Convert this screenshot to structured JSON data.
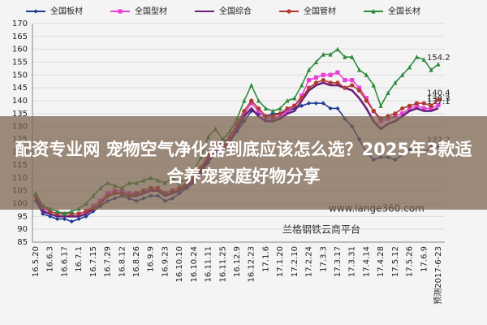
{
  "chart_data": {
    "type": "line",
    "categories": [
      "16.5.20",
      null,
      "16.6.3",
      null,
      "16.6.17",
      null,
      "16.7.1",
      null,
      "16.7.15",
      null,
      "16.7.29",
      null,
      "16.8.12",
      null,
      "16.8.26",
      null,
      "16.9.9",
      null,
      "16.9.23",
      null,
      "16.10.10",
      null,
      "16.10.24",
      null,
      "16.11.11",
      null,
      "16.11.25",
      null,
      "16.12.9",
      null,
      "16.12.23",
      null,
      "17.1.6",
      null,
      "17.1.20",
      null,
      "17.2.10",
      null,
      "17.2.24",
      null,
      "17.3.3",
      null,
      "17.3.17",
      null,
      "17.3.31",
      null,
      "17.4.14",
      null,
      "17.4.28",
      null,
      "17.5.12",
      null,
      "17.5.26",
      null,
      "17.6.9",
      null,
      "预测2017-6-23"
    ],
    "series": [
      {
        "name": "全国板材",
        "color": "#1f3a93",
        "marker": "diamond",
        "values": [
          101,
          96,
          95,
          94,
          94,
          93,
          94,
          95,
          97,
          99,
          101,
          102,
          103,
          102,
          101,
          102,
          103,
          103,
          101,
          102,
          104,
          106,
          108,
          112,
          116,
          120,
          125,
          124,
          128,
          132,
          136,
          135,
          134,
          135,
          135,
          136,
          137,
          138,
          139,
          139,
          139,
          137,
          137,
          133,
          130,
          125,
          120,
          117,
          118,
          118,
          117,
          119,
          121,
          120,
          120,
          122,
          122.2
        ]
      },
      {
        "name": "全国型材",
        "color": "#e83fd6",
        "marker": "square",
        "values": [
          103,
          98,
          97,
          96,
          96,
          96,
          96,
          97,
          99,
          101,
          104,
          105,
          105,
          104,
          104,
          105,
          106,
          106,
          104,
          105,
          106,
          108,
          110,
          114,
          118,
          121,
          122,
          125,
          130,
          135,
          139,
          136,
          133,
          133,
          134,
          136,
          138,
          142,
          148,
          149,
          150,
          150,
          151,
          148,
          148,
          145,
          141,
          136,
          132,
          133,
          134,
          135,
          137,
          138,
          137,
          137,
          138.3
        ]
      },
      {
        "name": "全国综合",
        "color": "#6b1f7a",
        "marker": "none",
        "values": [
          102,
          97,
          96,
          95,
          95,
          95,
          95,
          96,
          98,
          100,
          103,
          104,
          104,
          103,
          103,
          104,
          105,
          105,
          103,
          104,
          105,
          107,
          109,
          113,
          117,
          120,
          121,
          124,
          129,
          134,
          137,
          134,
          132,
          132,
          133,
          135,
          136,
          140,
          144,
          146,
          147,
          146,
          146,
          145,
          144,
          141,
          137,
          132,
          129,
          131,
          132,
          134,
          136,
          137,
          136,
          136,
          137.1
        ]
      },
      {
        "name": "全国管材",
        "color": "#b03a2e",
        "marker": "circle",
        "values": [
          103,
          99,
          97,
          96,
          96,
          96,
          96,
          97,
          98,
          100,
          103,
          104,
          104,
          103,
          104,
          105,
          106,
          106,
          104,
          105,
          106,
          108,
          110,
          114,
          119,
          123,
          122,
          126,
          131,
          136,
          140,
          137,
          134,
          134,
          135,
          137,
          138,
          141,
          145,
          147,
          148,
          147,
          147,
          145,
          146,
          144,
          140,
          136,
          133,
          134,
          135,
          137,
          138,
          139,
          139,
          138,
          140.4
        ]
      },
      {
        "name": "全国长材",
        "color": "#2e8b3d",
        "marker": "triangle",
        "values": [
          104,
          99,
          98,
          97,
          96,
          97,
          98,
          100,
          103,
          106,
          108,
          107,
          106,
          108,
          108,
          109,
          110,
          109,
          108,
          110,
          108,
          110,
          113,
          118,
          126,
          129,
          125,
          128,
          133,
          140,
          146,
          140,
          137,
          136,
          137,
          140,
          141,
          146,
          152,
          155,
          158,
          158,
          160,
          157,
          157,
          152,
          150,
          146,
          138,
          143,
          147,
          150,
          153,
          157,
          156,
          152,
          154.2
        ]
      }
    ],
    "ylim": [
      85,
      170
    ],
    "yticks": [
      85,
      90,
      95,
      100,
      105,
      110,
      115,
      120,
      125,
      130,
      135,
      140,
      145,
      150,
      155,
      160,
      165,
      170
    ],
    "grid": true,
    "watermark": "www.lange360.com",
    "source": "兰格钢铁云商平台",
    "overlay_title": "配资专业网 宠物空气净化器到底应该怎么选？2025年3款适合养宠家庭好物分享"
  }
}
